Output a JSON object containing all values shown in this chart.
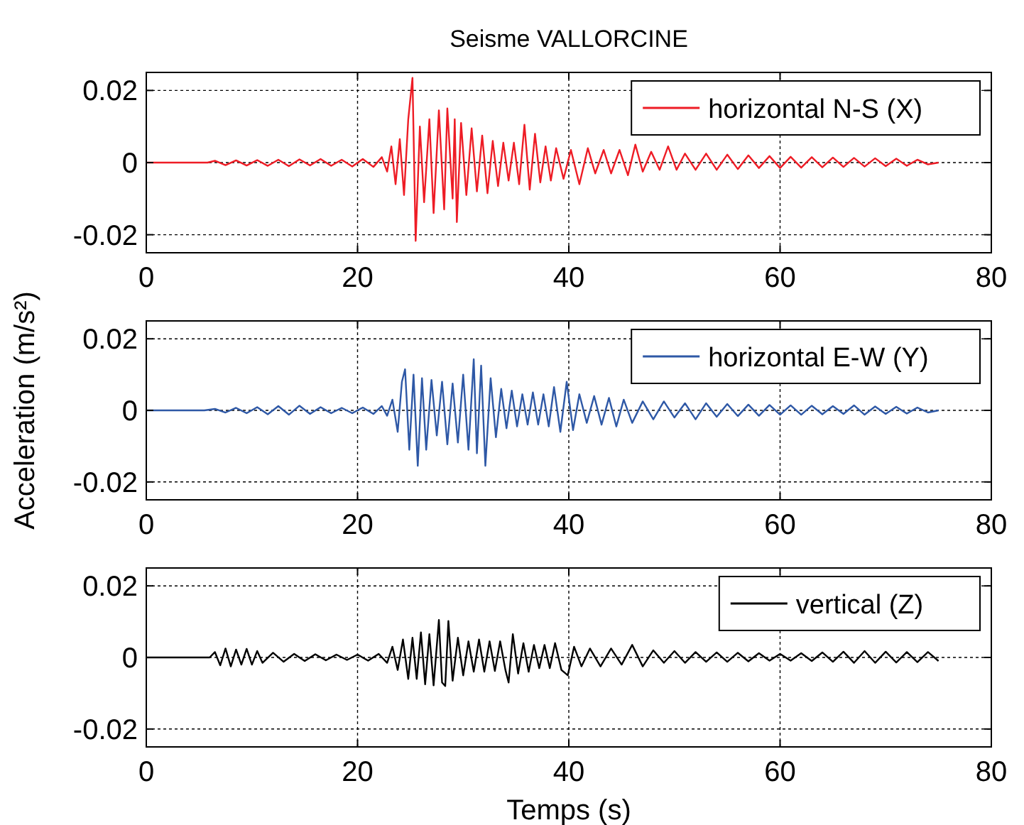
{
  "chart_data": [
    {
      "type": "line",
      "title": "Seisme VALLORCINE",
      "xlim": [
        0,
        80
      ],
      "xticks": [
        0,
        20,
        40,
        60,
        80
      ],
      "ylim": [
        -0.025,
        0.025
      ],
      "yticks": [
        -0.02,
        0,
        0.02
      ],
      "grid": true,
      "legend": "top right",
      "series": [
        {
          "name": "horizontal N-S (X)",
          "color": "#ee1c25",
          "x": [
            0,
            5.8,
            6.5,
            7.5,
            8.5,
            9.5,
            10.5,
            11.5,
            12.5,
            13.5,
            14.5,
            15.5,
            16.5,
            17.5,
            18.5,
            19.5,
            20.5,
            21.5,
            22.3,
            22.8,
            23.2,
            23.6,
            24.0,
            24.4,
            24.8,
            25.2,
            25.5,
            25.9,
            26.3,
            26.8,
            27.2,
            27.7,
            28.2,
            28.5,
            29.0,
            29.2,
            29.4,
            29.8,
            30.3,
            30.8,
            31.3,
            31.8,
            32.3,
            32.8,
            33.3,
            33.8,
            34.3,
            34.8,
            35.3,
            35.8,
            36.3,
            36.8,
            37.3,
            37.8,
            38.3,
            38.8,
            39.5,
            40.2,
            41.0,
            41.8,
            42.5,
            43.3,
            44.0,
            44.8,
            45.6,
            46.3,
            47.0,
            47.8,
            48.6,
            49.4,
            50.2,
            51.0,
            52,
            53,
            54,
            55,
            56,
            57,
            58,
            59,
            60,
            61,
            62,
            63,
            64,
            65,
            66,
            67,
            68,
            69,
            70,
            71,
            72,
            73,
            74,
            75
          ],
          "values": [
            0,
            0,
            0.0005,
            -0.0007,
            0.0006,
            -0.0008,
            0.0007,
            -0.0009,
            0.0008,
            -0.001,
            0.0009,
            -0.0008,
            0.001,
            -0.0009,
            0.0008,
            -0.0011,
            0.001,
            -0.0012,
            0.0015,
            -0.0025,
            0.0045,
            -0.006,
            0.0065,
            -0.009,
            0.012,
            0.0235,
            -0.0217,
            0.01,
            -0.011,
            0.012,
            -0.014,
            0.0145,
            -0.013,
            0.015,
            -0.01,
            0.012,
            -0.0165,
            0.011,
            -0.009,
            0.0095,
            -0.008,
            0.0075,
            -0.0085,
            0.006,
            -0.0065,
            0.0055,
            -0.005,
            0.0055,
            -0.006,
            0.0105,
            -0.0075,
            0.008,
            -0.0055,
            0.0045,
            -0.005,
            0.004,
            -0.0045,
            0.0035,
            -0.006,
            0.004,
            -0.003,
            0.0035,
            -0.003,
            0.0035,
            -0.0035,
            0.005,
            -0.0025,
            0.003,
            -0.002,
            0.0045,
            -0.002,
            0.0025,
            -0.002,
            0.0025,
            -0.002,
            0.0022,
            -0.0018,
            0.002,
            -0.0015,
            0.0018,
            -0.0015,
            0.0016,
            -0.0014,
            0.0015,
            -0.0013,
            0.0014,
            -0.0012,
            0.0013,
            -0.0011,
            0.0012,
            -0.001,
            0.0011,
            -0.0009,
            0.0008,
            -0.0005,
            0
          ]
        }
      ]
    },
    {
      "type": "line",
      "ylabel": "Acceleration (m/s²)",
      "xlim": [
        0,
        80
      ],
      "xticks": [
        0,
        20,
        40,
        60,
        80
      ],
      "ylim": [
        -0.025,
        0.025
      ],
      "yticks": [
        -0.02,
        0,
        0.02
      ],
      "grid": true,
      "legend": "top right",
      "series": [
        {
          "name": "horizontal E-W (Y)",
          "color": "#2e58a6",
          "x": [
            0,
            5.5,
            6.5,
            7.5,
            8.5,
            9.5,
            10.5,
            11.5,
            12.5,
            13.5,
            14.5,
            15.5,
            16.5,
            17.5,
            18.5,
            19.5,
            20.5,
            21.5,
            22.3,
            22.8,
            23.3,
            23.8,
            24.2,
            24.5,
            24.9,
            25.3,
            25.7,
            26.1,
            26.5,
            27.0,
            27.5,
            28.0,
            28.5,
            29.0,
            29.5,
            30.0,
            30.5,
            31.0,
            31.3,
            31.7,
            32.1,
            32.6,
            33.1,
            33.6,
            34.1,
            34.6,
            35.1,
            35.6,
            36.1,
            36.6,
            37.1,
            37.6,
            38.1,
            38.6,
            39.2,
            39.8,
            40.4,
            41.0,
            41.7,
            42.4,
            43.1,
            43.8,
            44.5,
            45.2,
            46,
            47,
            48,
            49,
            50,
            51,
            52,
            53,
            54,
            55,
            56,
            57,
            58,
            59,
            60,
            61,
            62,
            63,
            64,
            65,
            66,
            67,
            68,
            69,
            70,
            71,
            72,
            73,
            74,
            75
          ],
          "values": [
            0,
            0,
            0.0004,
            -0.0006,
            0.0007,
            -0.0008,
            0.0009,
            -0.0011,
            0.0012,
            -0.0012,
            0.0013,
            -0.001,
            0.0009,
            -0.0008,
            0.0007,
            -0.0008,
            0.0008,
            -0.001,
            0.0012,
            -0.0015,
            0.003,
            -0.006,
            0.008,
            0.0115,
            -0.011,
            0.01,
            -0.0155,
            0.009,
            -0.011,
            0.0085,
            -0.007,
            0.008,
            -0.0095,
            0.0075,
            -0.009,
            0.01,
            -0.011,
            0.0143,
            -0.012,
            0.0125,
            -0.0155,
            0.009,
            -0.0075,
            0.006,
            -0.005,
            0.0055,
            -0.0045,
            0.0045,
            -0.004,
            0.005,
            -0.004,
            0.0045,
            -0.0045,
            0.0065,
            -0.006,
            0.008,
            -0.0055,
            0.0045,
            -0.0035,
            0.004,
            -0.004,
            0.0035,
            -0.0045,
            0.003,
            -0.0035,
            0.0025,
            -0.0025,
            0.0025,
            -0.002,
            0.002,
            -0.0025,
            0.002,
            -0.0018,
            0.0018,
            -0.0016,
            0.0016,
            -0.0015,
            0.0015,
            -0.0012,
            0.0014,
            -0.0012,
            0.0013,
            -0.0011,
            0.0012,
            -0.001,
            0.0014,
            -0.0012,
            0.0011,
            -0.001,
            0.001,
            -0.0009,
            0.0008,
            -0.0006,
            0
          ]
        }
      ]
    },
    {
      "type": "line",
      "xlabel": "Temps (s)",
      "xlim": [
        0,
        80
      ],
      "xticks": [
        0,
        20,
        40,
        60,
        80
      ],
      "ylim": [
        -0.025,
        0.025
      ],
      "yticks": [
        -0.02,
        0,
        0.02
      ],
      "grid": true,
      "legend": "top right",
      "series": [
        {
          "name": "vertical (Z)",
          "color": "#000000",
          "x": [
            0,
            6.0,
            6.5,
            7.0,
            7.5,
            8.0,
            8.5,
            9.0,
            9.5,
            10.0,
            10.5,
            11.0,
            12.0,
            13.0,
            14.0,
            15.0,
            16.0,
            17.0,
            18.0,
            19.0,
            20.0,
            21.0,
            22.0,
            22.8,
            23.3,
            23.8,
            24.3,
            24.8,
            25.2,
            25.6,
            26.0,
            26.4,
            26.8,
            27.2,
            27.7,
            28.0,
            28.3,
            28.6,
            29.0,
            29.5,
            30.0,
            30.5,
            31.0,
            31.5,
            32.0,
            32.5,
            33.0,
            33.5,
            34.0,
            34.3,
            34.7,
            35.2,
            35.7,
            36.2,
            36.7,
            37.2,
            37.7,
            38.2,
            38.7,
            39.3,
            39.9,
            40.5,
            41.2,
            42,
            43,
            44,
            45,
            46,
            47,
            48,
            49,
            50,
            51,
            52,
            53,
            54,
            55,
            56,
            57,
            58,
            59,
            60,
            61,
            62,
            63,
            64,
            65,
            66,
            67,
            68,
            69,
            70,
            71,
            72,
            73,
            74,
            75
          ],
          "values": [
            0,
            0,
            0.0015,
            -0.0022,
            0.0025,
            -0.0025,
            0.0022,
            -0.002,
            0.0024,
            -0.002,
            0.0018,
            -0.0015,
            0.0013,
            -0.0012,
            0.001,
            -0.001,
            0.0009,
            -0.0008,
            0.0008,
            -0.0007,
            0.0008,
            -0.0009,
            0.001,
            -0.0015,
            0.003,
            -0.0035,
            0.005,
            -0.006,
            0.0055,
            -0.006,
            0.007,
            -0.0075,
            0.0065,
            -0.0078,
            0.0105,
            -0.007,
            -0.008,
            0.0102,
            -0.0065,
            0.0055,
            -0.005,
            0.0045,
            -0.004,
            0.005,
            -0.004,
            0.0045,
            -0.0038,
            0.0045,
            -0.0035,
            -0.007,
            0.0065,
            -0.0045,
            0.004,
            -0.004,
            0.0035,
            -0.003,
            0.0035,
            -0.003,
            0.004,
            -0.0035,
            -0.005,
            0.003,
            -0.0025,
            0.0025,
            -0.0025,
            0.0025,
            -0.002,
            0.0035,
            -0.0025,
            0.002,
            -0.0015,
            0.0018,
            -0.0015,
            0.0015,
            -0.0012,
            0.0014,
            -0.0012,
            0.0013,
            -0.0011,
            0.0012,
            -0.0009,
            0.001,
            -0.0009,
            0.0012,
            -0.001,
            0.0014,
            -0.0012,
            0.0016,
            -0.0015,
            0.0018,
            -0.0015,
            0.0016,
            -0.0014,
            0.0015,
            -0.0013,
            0.0015,
            -0.001
          ]
        }
      ]
    }
  ]
}
